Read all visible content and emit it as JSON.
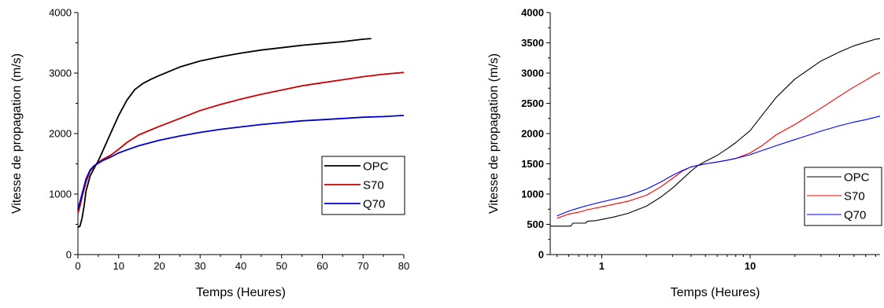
{
  "chart_data": [
    {
      "type": "line",
      "xlabel": "Temps (Heures)",
      "ylabel": "Vitesse de propagation (m/s)",
      "xlim": [
        0,
        80
      ],
      "ylim": [
        0,
        4000
      ],
      "x_scale": "linear",
      "x_ticks": [
        0,
        10,
        20,
        30,
        40,
        50,
        60,
        70,
        80
      ],
      "x_tick_labels": [
        "0",
        "10",
        "20",
        "30",
        "40",
        "50",
        "60",
        "70",
        "80"
      ],
      "y_ticks": [
        0,
        1000,
        2000,
        3000,
        4000
      ],
      "y_tick_labels": [
        "0",
        "1000",
        "2000",
        "3000",
        "4000"
      ],
      "legend": {
        "position": "lower-right",
        "entries": [
          "OPC",
          "S70",
          "Q70"
        ]
      },
      "grid": false,
      "series": [
        {
          "name": "OPC",
          "color": "#000000",
          "x": [
            0,
            0.5,
            1,
            1.5,
            2,
            3,
            4,
            5,
            6,
            8,
            10,
            12,
            14,
            16,
            18,
            20,
            25,
            30,
            35,
            40,
            45,
            50,
            55,
            60,
            65,
            70,
            72
          ],
          "y": [
            450,
            470,
            600,
            800,
            1050,
            1300,
            1430,
            1550,
            1700,
            2000,
            2300,
            2550,
            2730,
            2830,
            2900,
            2960,
            3100,
            3200,
            3270,
            3330,
            3380,
            3420,
            3460,
            3490,
            3520,
            3560,
            3570
          ]
        },
        {
          "name": "S70",
          "color": "#cc0000",
          "x": [
            0,
            0.5,
            1,
            2,
            3,
            4,
            5,
            6,
            8,
            10,
            12,
            15,
            20,
            25,
            30,
            35,
            40,
            45,
            50,
            55,
            60,
            65,
            70,
            75,
            80
          ],
          "y": [
            680,
            800,
            950,
            1200,
            1380,
            1460,
            1520,
            1570,
            1640,
            1740,
            1850,
            1980,
            2120,
            2250,
            2380,
            2480,
            2570,
            2650,
            2720,
            2790,
            2840,
            2890,
            2940,
            2980,
            3010
          ]
        },
        {
          "name": "Q70",
          "color": "#0000cc",
          "x": [
            0,
            0.5,
            1,
            2,
            3,
            4,
            5,
            6,
            8,
            10,
            12,
            15,
            20,
            25,
            30,
            35,
            40,
            45,
            50,
            55,
            60,
            65,
            70,
            75,
            80
          ],
          "y": [
            750,
            870,
            1000,
            1250,
            1400,
            1470,
            1510,
            1550,
            1610,
            1680,
            1730,
            1800,
            1890,
            1960,
            2020,
            2070,
            2110,
            2150,
            2180,
            2210,
            2230,
            2250,
            2270,
            2280,
            2300
          ]
        }
      ]
    },
    {
      "type": "line",
      "xlabel": "Temps (Heures)",
      "ylabel": "Vitesse de propagation (m/s)",
      "xlim": [
        0.45,
        75
      ],
      "ylim": [
        0,
        4000
      ],
      "x_scale": "log",
      "x_ticks": [
        1,
        10
      ],
      "x_tick_labels": [
        "1",
        "10"
      ],
      "y_ticks": [
        0,
        500,
        1000,
        1500,
        2000,
        2500,
        3000,
        3500,
        4000
      ],
      "y_tick_labels": [
        "0",
        "500",
        "1000",
        "1500",
        "2000",
        "2500",
        "3000",
        "3500",
        "4000"
      ],
      "legend": {
        "position": "lower-right",
        "entries": [
          "OPC",
          "S70",
          "Q70"
        ]
      },
      "grid": false,
      "series": [
        {
          "name": "OPC",
          "color": "#000000",
          "x": [
            0.45,
            0.55,
            0.62,
            0.64,
            0.7,
            0.78,
            0.8,
            0.9,
            1.0,
            1.2,
            1.5,
            2.0,
            2.5,
            3.0,
            3.5,
            4.0,
            4.5,
            5.0,
            6.0,
            7.0,
            8.0,
            10,
            12,
            15,
            20,
            30,
            40,
            50,
            60,
            70,
            75
          ],
          "y": [
            470,
            470,
            470,
            520,
            520,
            520,
            550,
            560,
            580,
            620,
            680,
            800,
            950,
            1100,
            1250,
            1380,
            1480,
            1540,
            1640,
            1750,
            1850,
            2050,
            2300,
            2600,
            2900,
            3200,
            3350,
            3450,
            3510,
            3560,
            3570
          ]
        },
        {
          "name": "S70",
          "color": "#ff0000",
          "x": [
            0.5,
            0.6,
            0.7,
            0.8,
            1.0,
            1.5,
            2.0,
            2.5,
            3.0,
            3.5,
            4.0,
            5.0,
            6.0,
            7.0,
            8.0,
            10,
            12,
            15,
            20,
            30,
            40,
            50,
            60,
            70,
            75
          ],
          "y": [
            600,
            670,
            700,
            740,
            790,
            880,
            980,
            1120,
            1260,
            1380,
            1450,
            1500,
            1530,
            1560,
            1590,
            1680,
            1800,
            1980,
            2150,
            2420,
            2620,
            2770,
            2880,
            2980,
            3010
          ]
        },
        {
          "name": "Q70",
          "color": "#0000ff",
          "x": [
            0.5,
            0.6,
            0.7,
            0.8,
            1.0,
            1.5,
            2.0,
            2.5,
            3.0,
            3.5,
            4.0,
            5.0,
            6.0,
            7.0,
            8.0,
            10,
            12,
            15,
            20,
            30,
            40,
            50,
            60,
            70,
            75
          ],
          "y": [
            640,
            720,
            770,
            810,
            870,
            970,
            1080,
            1200,
            1310,
            1390,
            1450,
            1500,
            1530,
            1560,
            1590,
            1650,
            1720,
            1800,
            1900,
            2040,
            2130,
            2190,
            2230,
            2270,
            2290
          ]
        }
      ]
    }
  ]
}
